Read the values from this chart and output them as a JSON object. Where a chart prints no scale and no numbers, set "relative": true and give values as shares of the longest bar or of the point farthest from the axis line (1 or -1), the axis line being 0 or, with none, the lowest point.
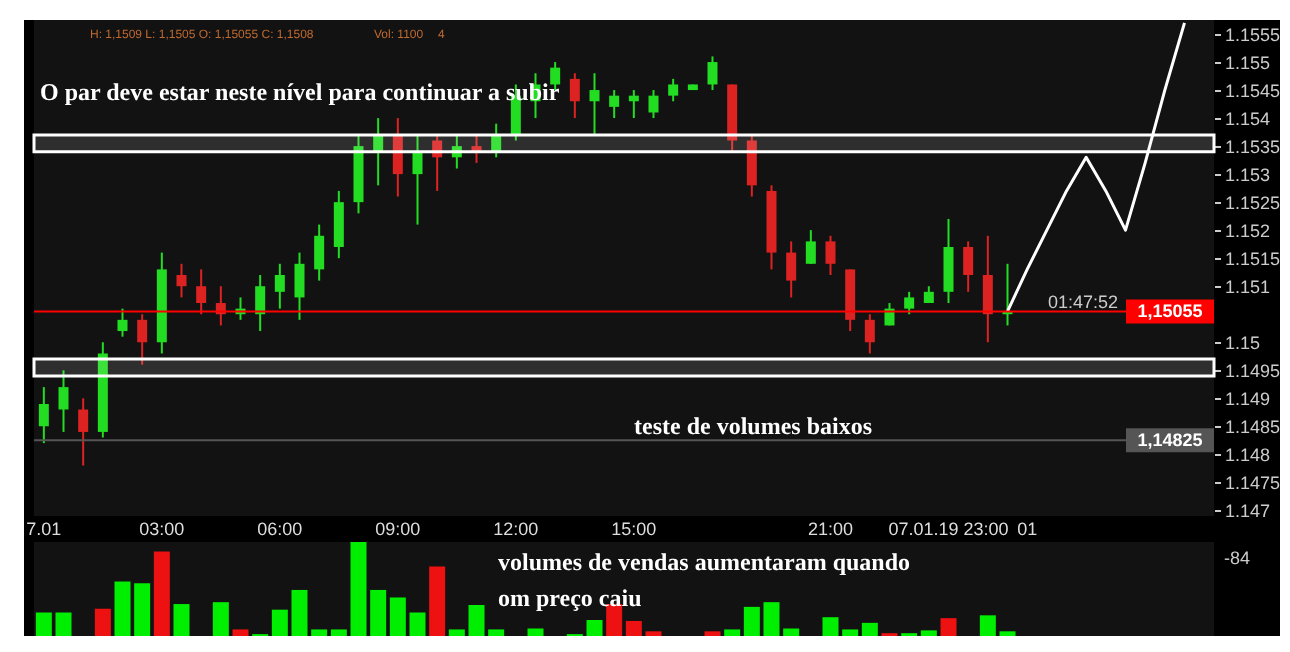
{
  "chart_data": [
    {
      "type": "candlestick",
      "categories": [
        "7.01",
        null,
        null,
        null,
        null,
        null,
        "03:00",
        null,
        null,
        null,
        null,
        null,
        "06:00",
        null,
        null,
        null,
        null,
        null,
        "09:00",
        null,
        null,
        null,
        null,
        null,
        "12:00",
        null,
        null,
        null,
        null,
        null,
        "15:00",
        null,
        null,
        null,
        null,
        null,
        null,
        null,
        null,
        null,
        "21:00",
        null,
        null,
        null,
        null,
        null,
        "07.01.19 23:00",
        null,
        null,
        null,
        "01",
        null,
        null,
        null,
        null,
        null,
        null,
        null,
        null,
        null
      ],
      "ohlc": [
        [
          1.1485,
          1.1492,
          1.1482,
          1.1489
        ],
        [
          1.1488,
          1.1495,
          1.1484,
          1.1492
        ],
        [
          1.1488,
          1.149,
          1.1478,
          1.1484
        ],
        [
          1.1484,
          1.15,
          1.1483,
          1.1498
        ],
        [
          1.1502,
          1.1506,
          1.1501,
          1.1504
        ],
        [
          1.1504,
          1.1505,
          1.1496,
          1.15
        ],
        [
          1.15,
          1.1516,
          1.1498,
          1.1513
        ],
        [
          1.1512,
          1.1514,
          1.1508,
          1.151
        ],
        [
          1.151,
          1.1513,
          1.1505,
          1.1507
        ],
        [
          1.1507,
          1.151,
          1.1503,
          1.1505
        ],
        [
          1.1505,
          1.1508,
          1.1504,
          1.1506
        ],
        [
          1.1505,
          1.1512,
          1.1502,
          1.151
        ],
        [
          1.1509,
          1.1514,
          1.1506,
          1.1512
        ],
        [
          1.1508,
          1.1516,
          1.1504,
          1.1514
        ],
        [
          1.1513,
          1.1521,
          1.1511,
          1.1519
        ],
        [
          1.1517,
          1.1527,
          1.1515,
          1.1525
        ],
        [
          1.1525,
          1.1537,
          1.1523,
          1.1535
        ],
        [
          1.1534,
          1.154,
          1.1528,
          1.1537
        ],
        [
          1.1537,
          1.154,
          1.1526,
          1.153
        ],
        [
          1.153,
          1.1537,
          1.1521,
          1.1534
        ],
        [
          1.1536,
          1.1537,
          1.1527,
          1.1533
        ],
        [
          1.1533,
          1.1537,
          1.1531,
          1.1535
        ],
        [
          1.1535,
          1.1537,
          1.1532,
          1.1534
        ],
        [
          1.1534,
          1.1539,
          1.1533,
          1.1537
        ],
        [
          1.1537,
          1.1546,
          1.1536,
          1.1544
        ],
        [
          1.1543,
          1.1548,
          1.154,
          1.1546
        ],
        [
          1.1546,
          1.155,
          1.1545,
          1.1549
        ],
        [
          1.1547,
          1.1548,
          1.154,
          1.1543
        ],
        [
          1.1543,
          1.1548,
          1.1537,
          1.1545
        ],
        [
          1.1542,
          1.1545,
          1.154,
          1.1544
        ],
        [
          1.1543,
          1.1545,
          1.154,
          1.1544
        ],
        [
          1.1541,
          1.1545,
          1.154,
          1.1544
        ],
        [
          1.1544,
          1.1547,
          1.1543,
          1.1546
        ],
        [
          1.1545,
          1.1546,
          1.1545,
          1.1546
        ],
        [
          1.1546,
          1.1551,
          1.1545,
          1.155
        ],
        [
          1.1546,
          1.1546,
          1.1534,
          1.1536
        ],
        [
          1.1536,
          1.1537,
          1.1526,
          1.1528
        ],
        [
          1.1527,
          1.1528,
          1.1513,
          1.1516
        ],
        [
          1.1516,
          1.1518,
          1.1508,
          1.1511
        ],
        [
          1.1514,
          1.152,
          1.1514,
          1.1518
        ],
        [
          1.1518,
          1.1519,
          1.1512,
          1.1514
        ],
        [
          1.1513,
          1.1513,
          1.1502,
          1.1504
        ],
        [
          1.1504,
          1.1505,
          1.1498,
          1.15
        ],
        [
          1.1503,
          1.1507,
          1.1503,
          1.1506
        ],
        [
          1.1506,
          1.1509,
          1.1505,
          1.1508
        ],
        [
          1.1507,
          1.151,
          1.1507,
          1.1509
        ],
        [
          1.1509,
          1.1522,
          1.1507,
          1.1517
        ],
        [
          1.1517,
          1.1518,
          1.1509,
          1.1512
        ],
        [
          1.1512,
          1.1519,
          1.15,
          1.1505
        ],
        [
          1.1505,
          1.1514,
          1.1503,
          1.15055
        ],
        null,
        null,
        null,
        null,
        null,
        null,
        null,
        null,
        null,
        null
      ],
      "colors": [
        "#22dd22",
        "#22dd22",
        "#dd2222",
        "#22dd22",
        "#22dd22",
        "#dd2222",
        "#22dd22",
        "#dd2222",
        "#dd2222",
        "#dd2222",
        "#22dd22",
        "#22dd22",
        "#22dd22",
        "#22dd22",
        "#22dd22",
        "#22dd22",
        "#22dd22",
        "#22dd22",
        "#dd2222",
        "#22dd22",
        "#dd2222",
        "#22dd22",
        "#dd2222",
        "#22dd22",
        "#22dd22",
        "#22dd22",
        "#22dd22",
        "#dd2222",
        "#22dd22",
        "#22dd22",
        "#22dd22",
        "#22dd22",
        "#22dd22",
        "#22dd22",
        "#22dd22",
        "#dd2222",
        "#dd2222",
        "#dd2222",
        "#dd2222",
        "#22dd22",
        "#dd2222",
        "#dd2222",
        "#dd2222",
        "#22dd22",
        "#22dd22",
        "#22dd22",
        "#22dd22",
        "#dd2222",
        "#dd2222",
        "#22dd22",
        null,
        null,
        null,
        null,
        null,
        null,
        null,
        null,
        null,
        null
      ],
      "series": [
        {
          "type": "line",
          "color": "#ffffff",
          "values": [
            null,
            null,
            null,
            null,
            null,
            null,
            null,
            null,
            null,
            null,
            null,
            null,
            null,
            null,
            null,
            null,
            null,
            null,
            null,
            null,
            null,
            null,
            null,
            null,
            null,
            null,
            null,
            null,
            null,
            null,
            null,
            null,
            null,
            null,
            null,
            null,
            null,
            null,
            null,
            null,
            null,
            null,
            null,
            null,
            null,
            null,
            null,
            null,
            null,
            1.15055,
            1.1513,
            1.152,
            1.1527,
            1.1533,
            1.1527,
            1.152,
            1.1532,
            1.1545,
            1.1557,
            null
          ]
        }
      ],
      "ylim": [
        1.1469,
        1.15575
      ],
      "yticks": [
        1.147,
        1.1475,
        1.148,
        1.1485,
        1.149,
        1.1495,
        1.15,
        1.151,
        1.1515,
        1.152,
        1.1525,
        1.153,
        1.1535,
        1.154,
        1.1545,
        1.155,
        1.1555
      ],
      "bands": [
        {
          "axis": "y",
          "from": 1.1534,
          "to": 1.1537,
          "color": "#ffffff"
        },
        {
          "axis": "y",
          "from": 1.1494,
          "to": 1.1497,
          "color": "#ffffff"
        }
      ],
      "ref_lines": [
        {
          "axis": "y",
          "value": 1.15055,
          "label": "1,15055",
          "color": "#ff0000"
        },
        {
          "axis": "y",
          "value": 1.14825,
          "label": "1,14825",
          "color": "#555555"
        }
      ],
      "annotations": [
        "H: 1,1509 L: 1,1505 O: 1,15055 C: 1,1508",
        "Vol: 1100",
        "4",
        "O par deve estar neste nível para continuar a subir",
        "teste de volumes baixos",
        "01:47:52"
      ]
    },
    {
      "type": "bar",
      "relative": true,
      "tick_labels": false,
      "categories": [
        null,
        null,
        null,
        null,
        null,
        null,
        null,
        null,
        null,
        null,
        null,
        null,
        null,
        null,
        null,
        null,
        null,
        null,
        null,
        null,
        null,
        null,
        null,
        null,
        null,
        null,
        null,
        null,
        null,
        null,
        null,
        null,
        null,
        null,
        null,
        null,
        null,
        null,
        null,
        null,
        null,
        null,
        null,
        null,
        null,
        null,
        null,
        null,
        null,
        null,
        null,
        null,
        null,
        null,
        null,
        null,
        null,
        null,
        null,
        null
      ],
      "values": [
        0.25,
        0.25,
        null,
        0.29,
        0.58,
        0.56,
        0.9,
        0.34,
        null,
        0.36,
        0.07,
        0.02,
        0.28,
        0.49,
        0.07,
        0.07,
        1,
        0.49,
        0.41,
        0.25,
        0.74,
        0.07,
        0.33,
        0.07,
        null,
        0.08,
        null,
        0.02,
        0.17,
        0.34,
        0.16,
        0.05,
        null,
        null,
        0.05,
        0.07,
        0.31,
        0.36,
        0.08,
        null,
        0.2,
        0.07,
        0.14,
        0.03,
        0.03,
        0.06,
        0.19,
        null,
        0.22,
        0.05,
        null,
        null,
        null,
        null,
        null,
        null,
        null,
        null,
        null,
        null
      ],
      "colors": [
        "#00ee00",
        "#00ee00",
        null,
        "#ee1111",
        "#00ee00",
        "#00ee00",
        "#ee1111",
        "#00ee00",
        null,
        "#00ee00",
        "#ee1111",
        "#00ee00",
        "#00ee00",
        "#00ee00",
        "#00ee00",
        "#00ee00",
        "#00ee00",
        "#00ee00",
        "#00ee00",
        "#00ee00",
        "#ee1111",
        "#00ee00",
        "#00ee00",
        "#00ee00",
        null,
        "#00ee00",
        null,
        "#00ee00",
        "#00ee00",
        "#ee1111",
        "#ee1111",
        "#ee1111",
        null,
        null,
        "#ee1111",
        "#00ee00",
        "#00ee00",
        "#00ee00",
        "#00ee00",
        null,
        "#00ee00",
        "#00ee00",
        "#00ee00",
        "#ee1111",
        "#00ee00",
        "#00ee00",
        "#ee1111",
        null,
        "#00ee00",
        "#00ee00",
        null,
        null,
        null,
        null,
        null,
        null,
        null,
        null,
        null,
        null
      ],
      "annotations": [
        "volumes de vendas aumentaram quando",
        "om preço caiu",
        "-84"
      ]
    }
  ]
}
